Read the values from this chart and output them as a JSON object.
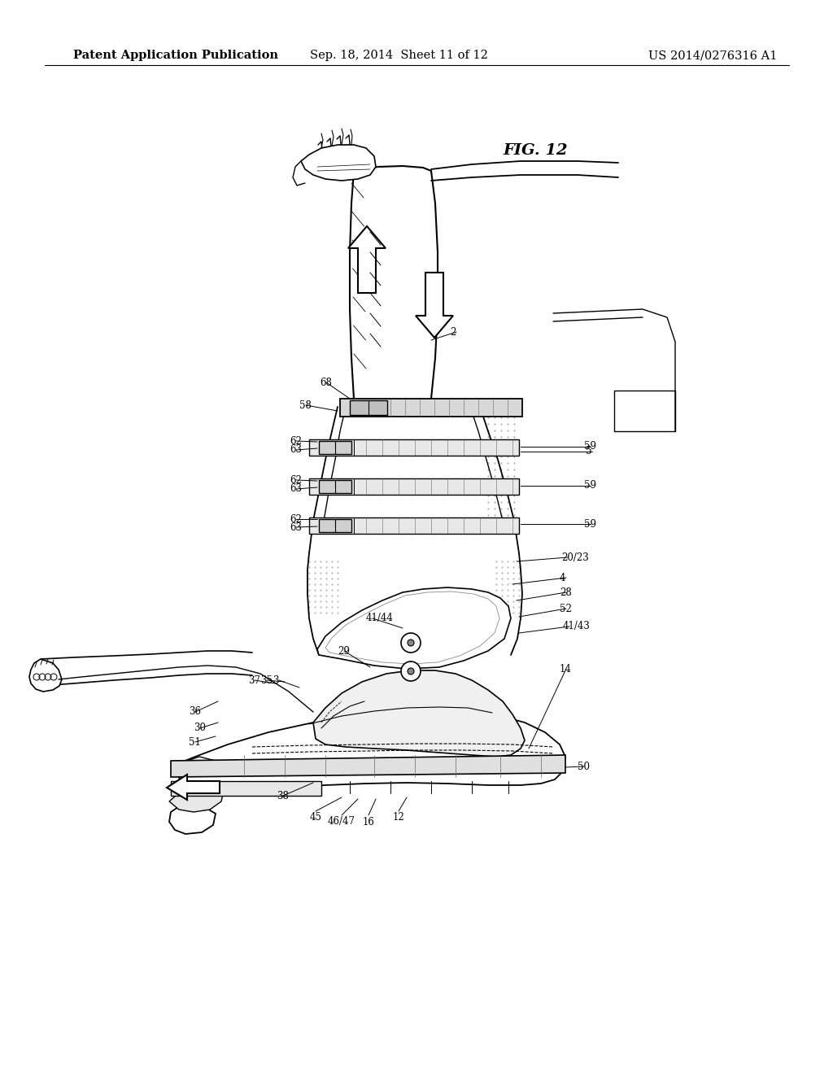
{
  "header_left": "Patent Application Publication",
  "header_mid": "Sep. 18, 2014  Sheet 11 of 12",
  "header_right": "US 2014/0276316 A1",
  "fig_label": "FIG. 12",
  "bg_color": "#ffffff",
  "line_color": "#000000",
  "header_fontsize": 10.5,
  "fig_label_fontsize": 14,
  "ref_fontsize": 8.5,
  "figsize": [
    10.24,
    13.2
  ],
  "dpi": 100
}
